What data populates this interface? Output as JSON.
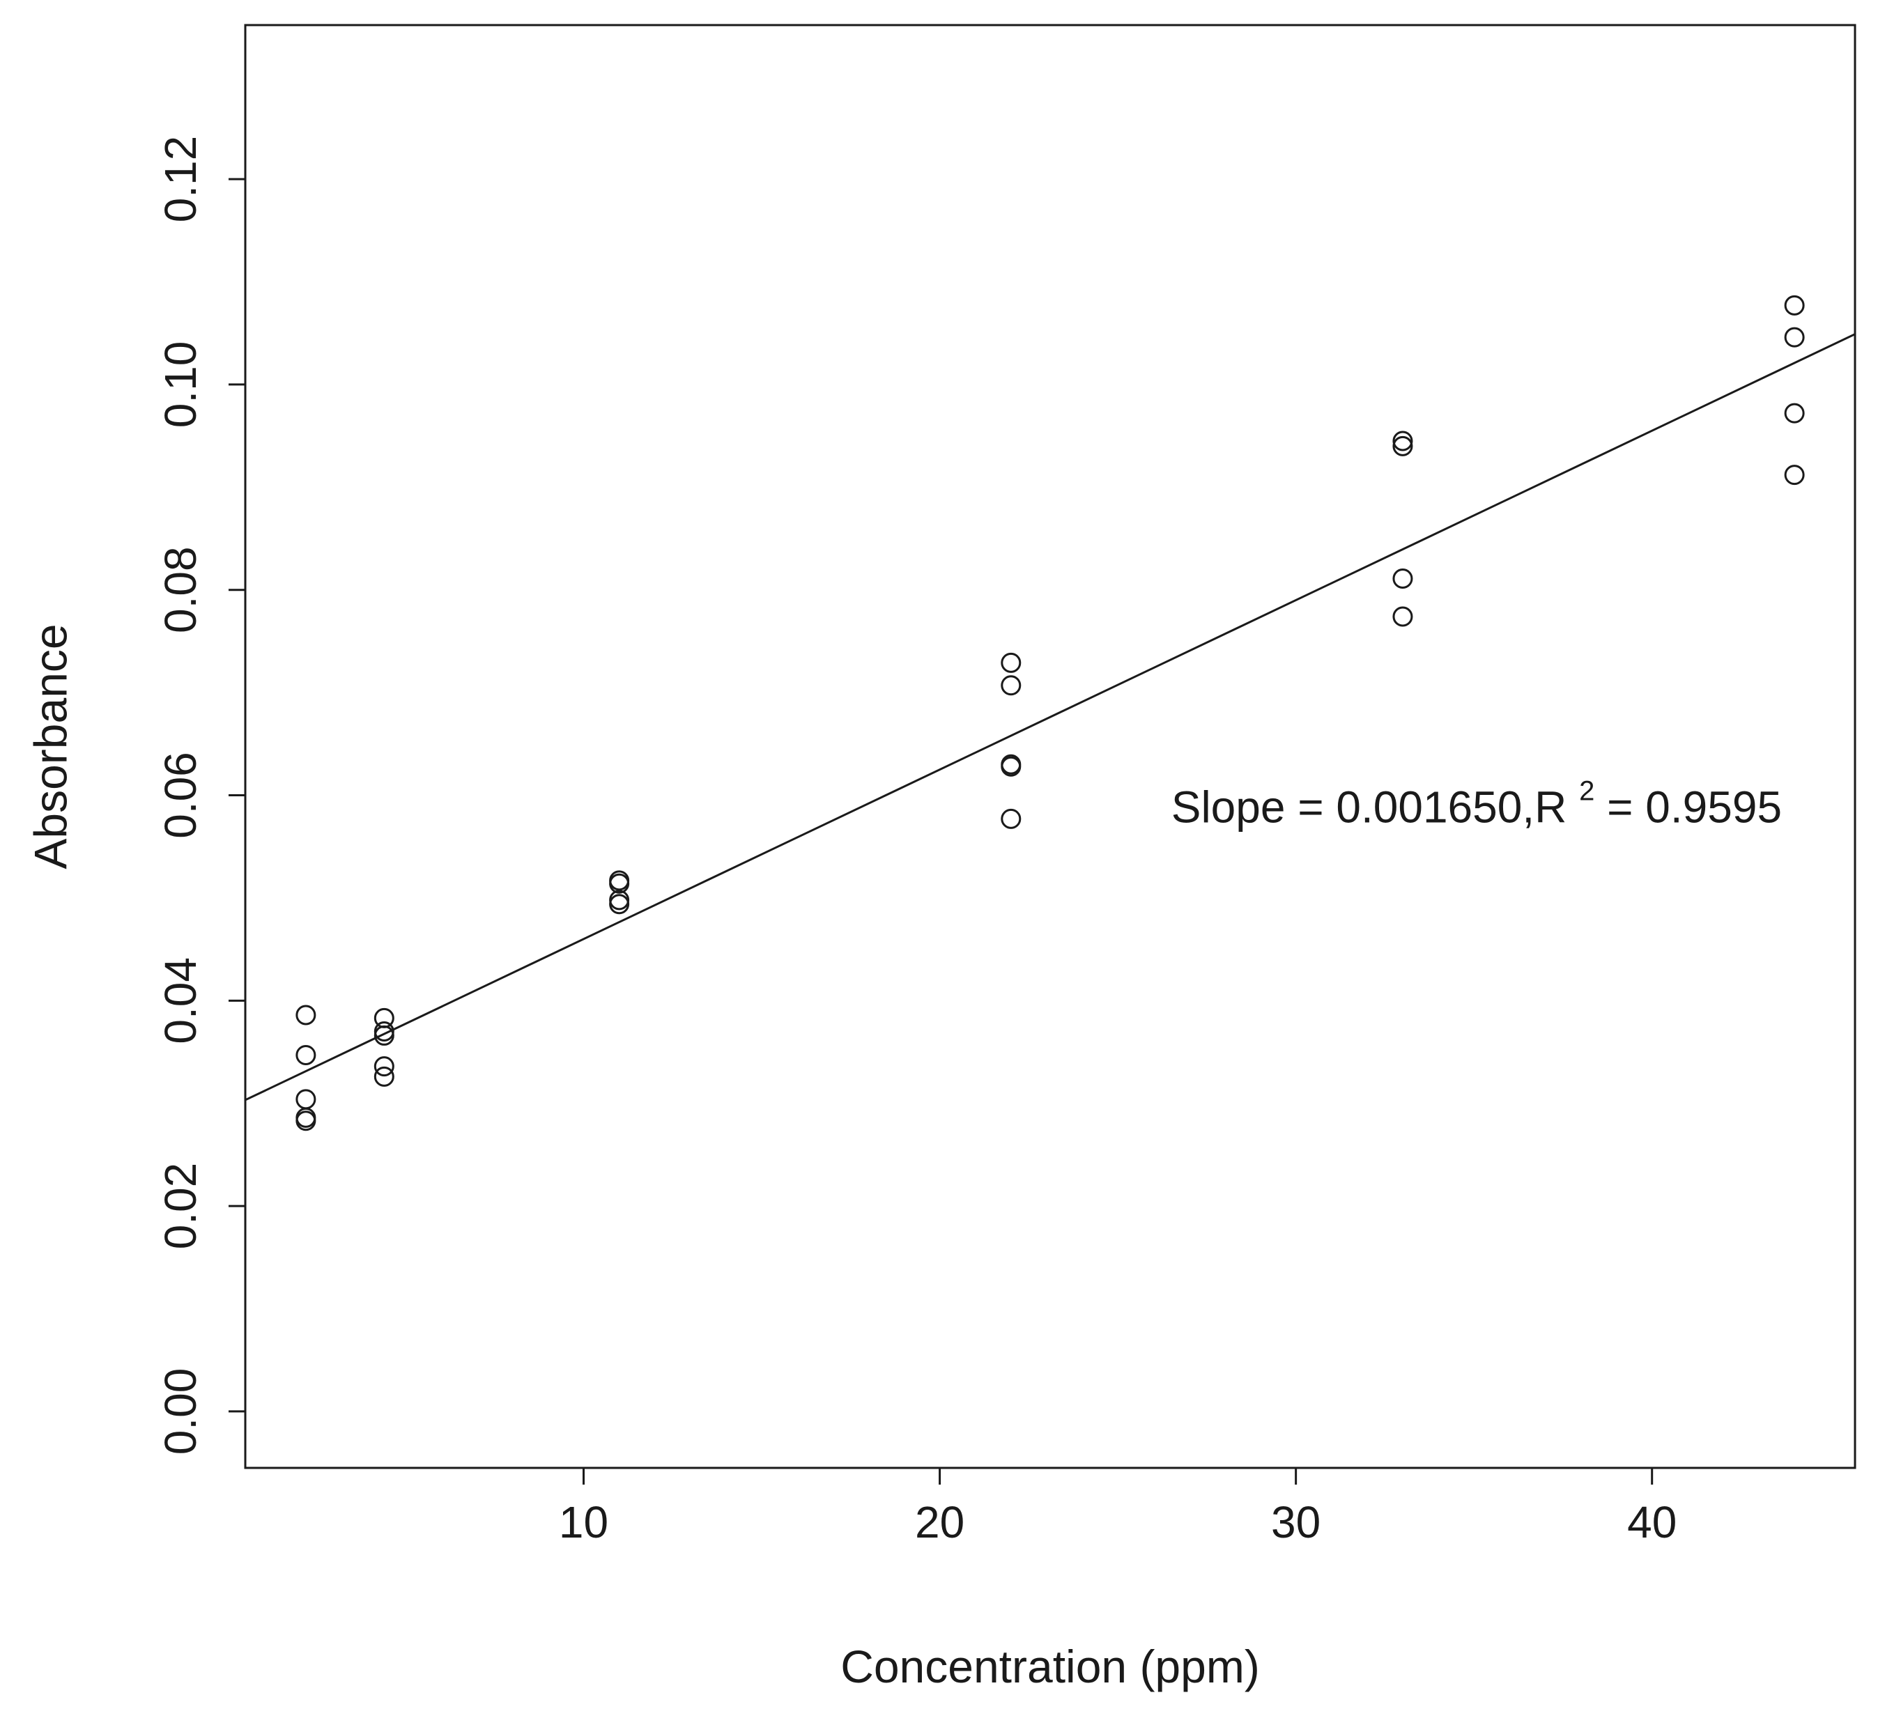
{
  "chart_data": {
    "type": "scatter",
    "xlabel": "Concentration (ppm)",
    "ylabel": "Absorbance",
    "xlim": [
      0.5,
      45.7
    ],
    "ylim": [
      -0.0055,
      0.135
    ],
    "x_ticks": [
      10,
      20,
      30,
      40
    ],
    "x_tick_labels": [
      "10",
      "20",
      "30",
      "40"
    ],
    "y_ticks": [
      0.0,
      0.02,
      0.04,
      0.06,
      0.08,
      0.1,
      0.12
    ],
    "y_tick_labels": [
      "0.00",
      "0.02",
      "0.04",
      "0.06",
      "0.08",
      "0.10",
      "0.12"
    ],
    "grid": false,
    "marker": "open-circle",
    "colors": {
      "marker": "#1a1a1a",
      "line": "#1a1a1a",
      "frame": "#1a1a1a"
    },
    "series": [
      {
        "values": [
          {
            "x": 2.2,
            "y": 0.0386
          },
          {
            "x": 2.2,
            "y": 0.0347
          },
          {
            "x": 2.2,
            "y": 0.0304
          },
          {
            "x": 2.2,
            "y": 0.0286
          },
          {
            "x": 2.2,
            "y": 0.0283
          },
          {
            "x": 4.4,
            "y": 0.0383
          },
          {
            "x": 4.4,
            "y": 0.037
          },
          {
            "x": 4.4,
            "y": 0.0366
          },
          {
            "x": 4.4,
            "y": 0.0336
          },
          {
            "x": 4.4,
            "y": 0.0326
          },
          {
            "x": 11,
            "y": 0.0517
          },
          {
            "x": 11,
            "y": 0.0514
          },
          {
            "x": 11,
            "y": 0.0498
          },
          {
            "x": 11,
            "y": 0.0494
          },
          {
            "x": 22,
            "y": 0.0729
          },
          {
            "x": 22,
            "y": 0.0707
          },
          {
            "x": 22,
            "y": 0.063
          },
          {
            "x": 22,
            "y": 0.0628
          },
          {
            "x": 22,
            "y": 0.0577
          },
          {
            "x": 33,
            "y": 0.0945
          },
          {
            "x": 33,
            "y": 0.094
          },
          {
            "x": 33,
            "y": 0.0811
          },
          {
            "x": 33,
            "y": 0.0774
          },
          {
            "x": 44,
            "y": 0.1077
          },
          {
            "x": 44,
            "y": 0.1046
          },
          {
            "x": 44,
            "y": 0.0972
          },
          {
            "x": 44,
            "y": 0.0912
          }
        ]
      }
    ],
    "fit_line": {
      "slope": 0.00165,
      "intercept": 0.0295
    },
    "annotation": {
      "text_main": "Slope = 0.001650,R",
      "superscript": "2",
      "text_tail": "= 0.9595",
      "x": 26.5,
      "y": 0.0585
    }
  }
}
